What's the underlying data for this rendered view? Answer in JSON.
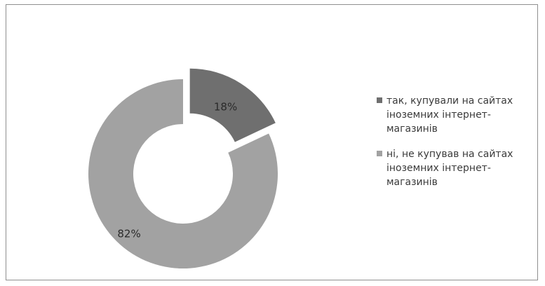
{
  "chart_data": {
    "type": "pie",
    "variant": "exploded donut",
    "title": "",
    "categories": [
      "так, купували на сайтах іноземних інтернет-магазинів",
      "ні, не купував на сайтах іноземних інтернет-магазинів"
    ],
    "values": [
      18,
      82
    ],
    "data_labels": [
      "18%",
      "82%"
    ],
    "colors": [
      "#6f6f6f",
      "#a2a2a2"
    ],
    "legend_position": "right"
  }
}
